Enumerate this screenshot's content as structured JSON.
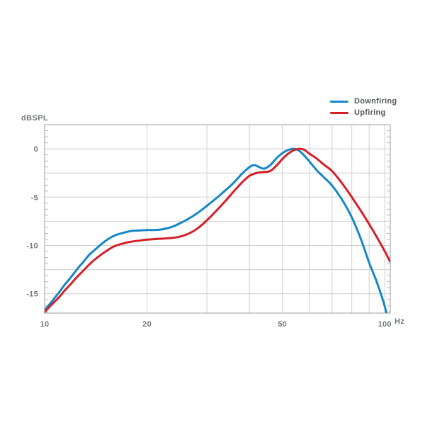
{
  "colors": {
    "background": "#ffffff",
    "grid": "#cfcfcf",
    "frame": "#aeaeae",
    "minor_tick": "#b8b8b8",
    "axis_text": "#74777a",
    "legend_text": "#55585c",
    "downfiring": "#1787c5",
    "upfiring": "#d32029"
  },
  "chart_data": {
    "type": "line",
    "title": "",
    "xlabel": "Hz",
    "ylabel": "dBSPL",
    "x_scale": "log",
    "x_range": [
      10,
      103.8
    ],
    "y_range": [
      2.5,
      -17
    ],
    "x_gridlines": [
      20,
      30,
      40,
      50,
      60,
      70,
      80,
      90,
      100
    ],
    "x_tick_labels": [
      {
        "value": 10,
        "label": "10"
      },
      {
        "value": 20,
        "label": "20"
      },
      {
        "value": 50,
        "label": "50"
      },
      {
        "value": 100,
        "label": "100"
      }
    ],
    "y_gridlines": [
      0,
      -2.5,
      -5,
      -7.5,
      -10,
      -12.5,
      -15
    ],
    "y_tick_labels": [
      {
        "value": 0,
        "label": "0"
      },
      {
        "value": -5,
        "label": "-5"
      },
      {
        "value": -10,
        "label": "-10"
      },
      {
        "value": -15,
        "label": "-15"
      }
    ],
    "y_minor_tick_step": 0.625,
    "grid": true,
    "legend_position": "top-right",
    "series": [
      {
        "name": "Downfiring",
        "color": "#1787c5",
        "points": [
          [
            10,
            -16.7
          ],
          [
            10.5,
            -15.8
          ],
          [
            11,
            -14.9
          ],
          [
            11.5,
            -14.0
          ],
          [
            12,
            -13.2
          ],
          [
            12.5,
            -12.4
          ],
          [
            13,
            -11.7
          ],
          [
            13.5,
            -11.0
          ],
          [
            14,
            -10.5
          ],
          [
            15,
            -9.6
          ],
          [
            16,
            -9.0
          ],
          [
            17,
            -8.7
          ],
          [
            18,
            -8.5
          ],
          [
            19,
            -8.45
          ],
          [
            20,
            -8.4
          ],
          [
            21,
            -8.4
          ],
          [
            22,
            -8.35
          ],
          [
            23,
            -8.2
          ],
          [
            24,
            -8.0
          ],
          [
            25,
            -7.7
          ],
          [
            26,
            -7.4
          ],
          [
            28,
            -6.7
          ],
          [
            30,
            -5.9
          ],
          [
            32,
            -5.1
          ],
          [
            34,
            -4.3
          ],
          [
            36,
            -3.5
          ],
          [
            38,
            -2.6
          ],
          [
            40,
            -1.9
          ],
          [
            41.5,
            -1.7
          ],
          [
            44,
            -2.05
          ],
          [
            46,
            -1.7
          ],
          [
            48,
            -1.0
          ],
          [
            50,
            -0.45
          ],
          [
            52,
            -0.12
          ],
          [
            53.5,
            0.0
          ],
          [
            55,
            -0.05
          ],
          [
            56.5,
            -0.3
          ],
          [
            58,
            -0.7
          ],
          [
            60,
            -1.3
          ],
          [
            63,
            -2.2
          ],
          [
            66,
            -2.9
          ],
          [
            70,
            -3.8
          ],
          [
            75,
            -5.3
          ],
          [
            80,
            -7.1
          ],
          [
            85,
            -9.3
          ],
          [
            90,
            -11.8
          ],
          [
            95,
            -13.9
          ],
          [
            100,
            -16.3
          ],
          [
            101.5,
            -17.4
          ]
        ]
      },
      {
        "name": "Upfiring",
        "color": "#d32029",
        "points": [
          [
            10,
            -16.9
          ],
          [
            10.5,
            -16.1
          ],
          [
            11,
            -15.4
          ],
          [
            11.5,
            -14.6
          ],
          [
            12,
            -13.9
          ],
          [
            12.5,
            -13.2
          ],
          [
            13,
            -12.6
          ],
          [
            13.5,
            -12.0
          ],
          [
            14,
            -11.5
          ],
          [
            15,
            -10.7
          ],
          [
            16,
            -10.1
          ],
          [
            17,
            -9.8
          ],
          [
            18,
            -9.6
          ],
          [
            19,
            -9.5
          ],
          [
            20,
            -9.4
          ],
          [
            22,
            -9.3
          ],
          [
            24,
            -9.2
          ],
          [
            26,
            -8.9
          ],
          [
            28,
            -8.3
          ],
          [
            30,
            -7.4
          ],
          [
            32,
            -6.4
          ],
          [
            34,
            -5.4
          ],
          [
            36,
            -4.4
          ],
          [
            38,
            -3.5
          ],
          [
            40,
            -2.8
          ],
          [
            42,
            -2.5
          ],
          [
            44,
            -2.4
          ],
          [
            46,
            -2.3
          ],
          [
            48,
            -1.75
          ],
          [
            50,
            -1.05
          ],
          [
            52,
            -0.5
          ],
          [
            54,
            -0.15
          ],
          [
            56,
            0.0
          ],
          [
            58,
            -0.1
          ],
          [
            60,
            -0.5
          ],
          [
            63,
            -1.0
          ],
          [
            66,
            -1.6
          ],
          [
            70,
            -2.3
          ],
          [
            75,
            -3.6
          ],
          [
            80,
            -5.0
          ],
          [
            85,
            -6.4
          ],
          [
            90,
            -7.8
          ],
          [
            95,
            -9.2
          ],
          [
            100,
            -10.6
          ],
          [
            103.8,
            -11.7
          ]
        ]
      }
    ]
  }
}
